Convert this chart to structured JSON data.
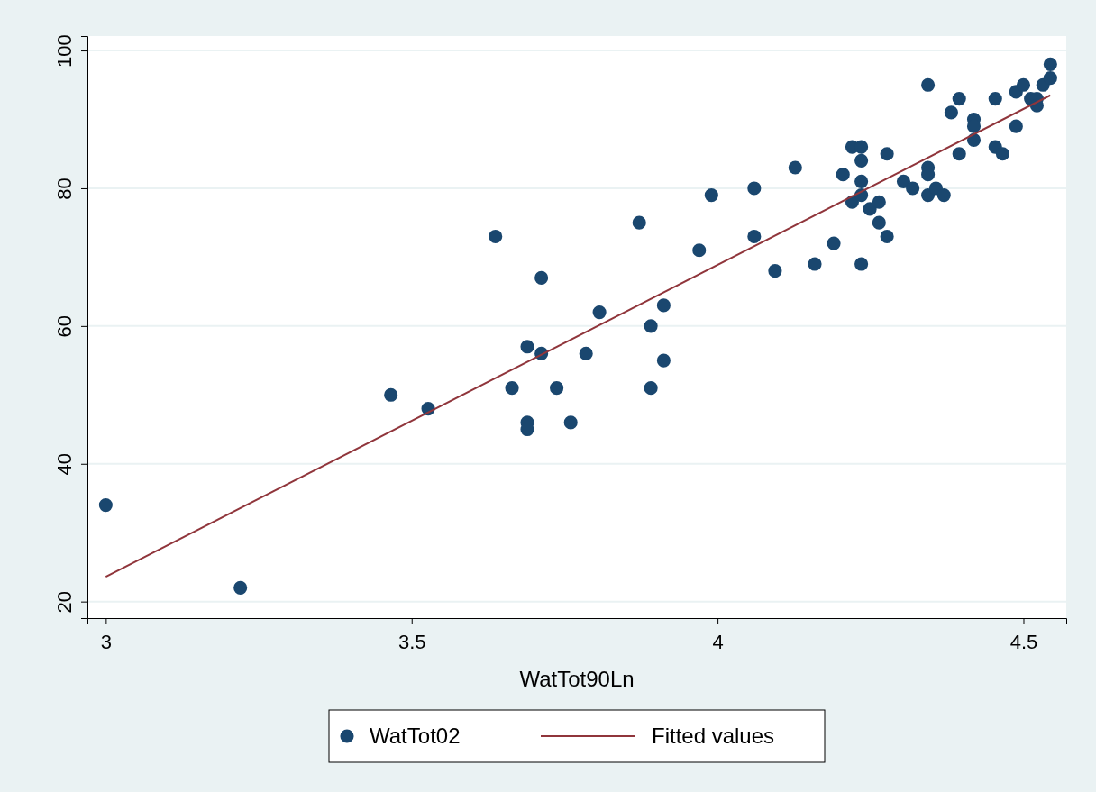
{
  "chart_data": {
    "type": "scatter",
    "xlabel": "WatTot90Ln",
    "xlim": [
      2.97,
      4.57
    ],
    "xticks": [
      3,
      3.5,
      4,
      4.5
    ],
    "ylim": [
      17.6,
      102.1
    ],
    "yticks": [
      20,
      40,
      60,
      80,
      100
    ],
    "grid": "y",
    "legend": "bottom",
    "series": [
      {
        "name": "WatTot02",
        "marker": "circle",
        "color": "#1a476f",
        "x": [
          3.0,
          3.22,
          3.466,
          3.527,
          3.637,
          3.664,
          3.689,
          3.689,
          3.689,
          3.712,
          3.712,
          3.737,
          3.76,
          3.785,
          3.807,
          3.872,
          3.891,
          3.891,
          3.912,
          3.912,
          3.97,
          3.99,
          4.06,
          4.06,
          4.094,
          4.127,
          4.159,
          4.19,
          4.205,
          4.22,
          4.22,
          4.235,
          4.235,
          4.235,
          4.235,
          4.235,
          4.249,
          4.264,
          4.264,
          4.277,
          4.277,
          4.304,
          4.319,
          4.344,
          4.344,
          4.344,
          4.344,
          4.357,
          4.37,
          4.382,
          4.395,
          4.395,
          4.419,
          4.419,
          4.419,
          4.454,
          4.454,
          4.466,
          4.488,
          4.488,
          4.5,
          4.512,
          4.522,
          4.522,
          4.532,
          4.544,
          4.544
        ],
        "values": [
          34,
          22,
          50,
          48,
          73,
          51,
          57,
          46,
          45,
          67,
          56,
          51,
          46,
          56,
          62,
          75,
          60,
          51,
          63,
          55,
          71,
          79,
          80,
          73,
          68,
          83,
          69,
          72,
          82,
          86,
          78,
          86,
          84,
          81,
          79,
          69,
          77,
          78,
          75,
          85,
          73,
          81,
          80,
          95,
          83,
          82,
          79,
          80,
          79,
          91,
          93,
          85,
          90,
          89,
          87,
          93,
          86,
          85,
          94,
          89,
          95,
          93,
          93,
          92,
          95,
          98,
          96
        ]
      },
      {
        "name": "Fitted values",
        "type": "line",
        "color": "#90353b",
        "marker": "none",
        "x": [
          3.0,
          4.544
        ],
        "values": [
          23.6,
          93.5
        ]
      }
    ]
  }
}
